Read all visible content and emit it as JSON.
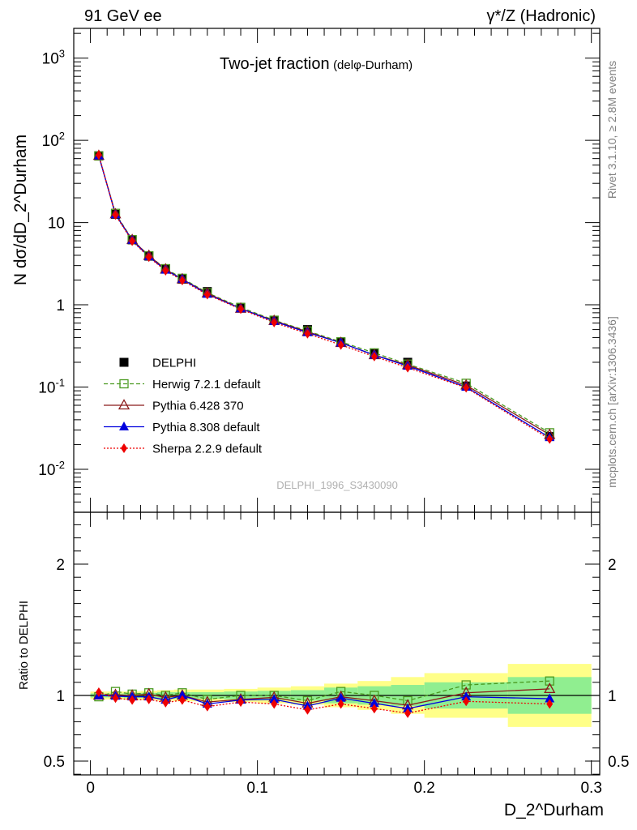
{
  "header": {
    "left": "91 GeV ee",
    "right": "γ*/Z (Hadronic)"
  },
  "side_labels": {
    "rivet": "Rivet 3.1.10, ≥ 2.8M events",
    "mcplots": "mcplots.cern.ch [arXiv:1306.3436]"
  },
  "chart_data": {
    "type": "line",
    "title": "Two-jet fraction",
    "title_suffix": "(delφ-Durham)",
    "watermark": "DELPHI_1996_S3430090",
    "xlabel": "D_2^Durham",
    "ylabel": "N dσ/dD_2^Durham",
    "ratio_ylabel": "Ratio to DELPHI",
    "xlim": [
      -0.01,
      0.305
    ],
    "xticks": [
      0,
      0.1,
      0.2,
      0.3
    ],
    "xtick_labels": [
      "0",
      "0.1",
      "0.2",
      "0.3"
    ],
    "main_yscale": "log",
    "main_ylim": [
      0.003,
      2300
    ],
    "main_yticks": [
      {
        "value": 1000,
        "label": "10^3"
      },
      {
        "value": 100,
        "label": "10^2"
      },
      {
        "value": 10,
        "label": "10"
      },
      {
        "value": 1,
        "label": "1"
      },
      {
        "value": 0.1,
        "label": "10^-1"
      },
      {
        "value": 0.01,
        "label": "10^-2"
      }
    ],
    "ratio_ylim": [
      0.395,
      2.395
    ],
    "ratio_yticks": [
      {
        "value": 2,
        "label": "2"
      },
      {
        "value": 1,
        "label": "1"
      },
      {
        "value": 0.5,
        "label": "0.5"
      }
    ],
    "x": [
      0.005,
      0.015,
      0.025,
      0.035,
      0.045,
      0.055,
      0.07,
      0.09,
      0.11,
      0.13,
      0.15,
      0.17,
      0.19,
      0.225,
      0.275
    ],
    "bins": [
      [
        0,
        0.01
      ],
      [
        0.01,
        0.02
      ],
      [
        0.02,
        0.03
      ],
      [
        0.03,
        0.04
      ],
      [
        0.04,
        0.05
      ],
      [
        0.05,
        0.06
      ],
      [
        0.06,
        0.08
      ],
      [
        0.08,
        0.1
      ],
      [
        0.1,
        0.12
      ],
      [
        0.12,
        0.14
      ],
      [
        0.14,
        0.16
      ],
      [
        0.16,
        0.18
      ],
      [
        0.18,
        0.2
      ],
      [
        0.2,
        0.25
      ],
      [
        0.25,
        0.3
      ]
    ],
    "data": {
      "name": "DELPHI",
      "values": [
        65,
        12.6,
        6.15,
        3.9,
        2.75,
        2.05,
        1.45,
        0.93,
        0.65,
        0.5,
        0.35,
        0.26,
        0.2,
        0.103,
        0.025
      ],
      "band_yellow": [
        0.03,
        0.03,
        0.03,
        0.035,
        0.04,
        0.045,
        0.045,
        0.05,
        0.06,
        0.07,
        0.09,
        0.11,
        0.14,
        0.17,
        0.24
      ],
      "band_green": [
        0.015,
        0.015,
        0.02,
        0.02,
        0.025,
        0.025,
        0.025,
        0.03,
        0.035,
        0.04,
        0.06,
        0.07,
        0.08,
        0.1,
        0.14
      ]
    },
    "series": [
      {
        "name": "Herwig 7.2.1 default",
        "color": "#4a9a20",
        "marker": "open-square",
        "dash": "dashed",
        "values": [
          64.5,
          12.95,
          6.2,
          3.95,
          2.75,
          2.1,
          1.4,
          0.93,
          0.65,
          0.48,
          0.355,
          0.26,
          0.19,
          0.111,
          0.0278
        ],
        "ratio": [
          0.99,
          1.03,
          1.01,
          1.02,
          1.0,
          1.02,
          0.97,
          1.0,
          1.0,
          0.96,
          1.03,
          1.0,
          0.96,
          1.08,
          1.11
        ]
      },
      {
        "name": "Pythia 6.428 370",
        "color": "#8b1a1a",
        "marker": "open-triangle",
        "dash": "solid",
        "values": [
          65,
          12.65,
          6.15,
          3.95,
          2.7,
          2.05,
          1.38,
          0.9,
          0.64,
          0.47,
          0.345,
          0.245,
          0.185,
          0.105,
          0.0263
        ],
        "ratio": [
          1.0,
          1.005,
          1.0,
          1.01,
          0.985,
          1.0,
          0.95,
          0.97,
          0.985,
          0.94,
          0.99,
          0.96,
          0.925,
          1.02,
          1.05
        ]
      },
      {
        "name": "Pythia 8.308 default",
        "color": "#0000dd",
        "marker": "filled-triangle",
        "dash": "solid",
        "values": [
          65,
          12.5,
          6.1,
          3.85,
          2.65,
          2.05,
          1.35,
          0.9,
          0.63,
          0.46,
          0.345,
          0.245,
          0.18,
          0.1,
          0.0244
        ],
        "ratio": [
          1.0,
          0.995,
          0.99,
          0.99,
          0.965,
          1.0,
          0.935,
          0.965,
          0.97,
          0.92,
          0.98,
          0.94,
          0.9,
          0.99,
          0.975
        ]
      },
      {
        "name": "Sherpa 2.2.9 default",
        "color": "#ee0000",
        "marker": "filled-diamond",
        "dash": "dotted",
        "values": [
          66.5,
          12.35,
          5.95,
          3.8,
          2.6,
          1.98,
          1.33,
          0.885,
          0.61,
          0.445,
          0.325,
          0.235,
          0.172,
          0.098,
          0.0233
        ],
        "ratio": [
          1.025,
          0.98,
          0.965,
          0.97,
          0.945,
          0.965,
          0.915,
          0.95,
          0.935,
          0.89,
          0.935,
          0.9,
          0.865,
          0.955,
          0.935
        ]
      }
    ],
    "legend": {
      "placement": "lower-left",
      "entries": [
        "DELPHI",
        "Herwig 7.2.1 default",
        "Pythia 6.428 370",
        "Pythia 8.308 default",
        "Sherpa 2.2.9 default"
      ]
    }
  }
}
